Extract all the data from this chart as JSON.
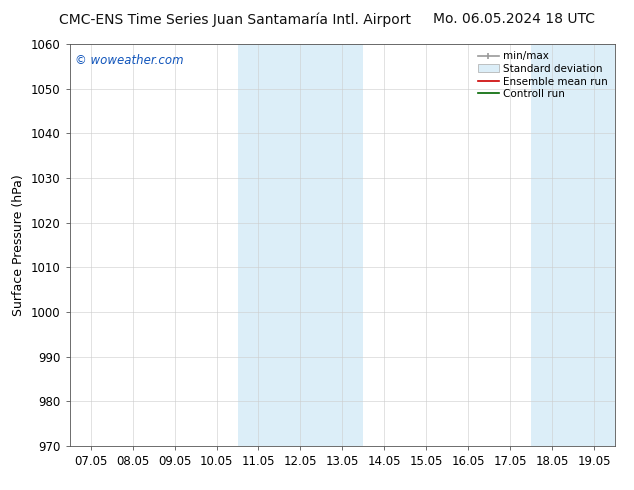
{
  "title_left": "CMC-ENS Time Series Juan Santamaría Intl. Airport",
  "title_right": "Mo. 06.05.2024 18 UTC",
  "ylabel": "Surface Pressure (hPa)",
  "ylim": [
    970,
    1060
  ],
  "yticks": [
    970,
    980,
    990,
    1000,
    1010,
    1020,
    1030,
    1040,
    1050,
    1060
  ],
  "xtick_labels": [
    "07.05",
    "08.05",
    "09.05",
    "10.05",
    "11.05",
    "12.05",
    "13.05",
    "14.05",
    "15.05",
    "16.05",
    "17.05",
    "18.05",
    "19.05"
  ],
  "xtick_positions": [
    0,
    1,
    2,
    3,
    4,
    5,
    6,
    7,
    8,
    9,
    10,
    11,
    12
  ],
  "xlim": [
    -0.5,
    12.5
  ],
  "shade_color": "#dceef8",
  "shade_regions": [
    {
      "x_start": 3.5,
      "x_end": 6.5
    },
    {
      "x_start": 10.5,
      "x_end": 12.5
    }
  ],
  "watermark": "© woweather.com",
  "watermark_color": "#1155bb",
  "legend_labels": [
    "min/max",
    "Standard deviation",
    "Ensemble mean run",
    "Controll run"
  ],
  "legend_line_colors": [
    "#999999",
    "#bbccdd",
    "#cc0000",
    "#006600"
  ],
  "background_color": "#ffffff",
  "grid_color": "#cccccc",
  "title_fontsize": 10,
  "tick_fontsize": 8.5,
  "ylabel_fontsize": 9
}
